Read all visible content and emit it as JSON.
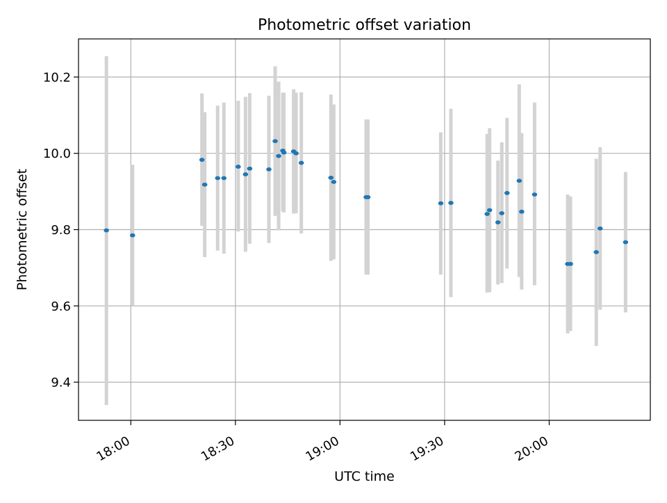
{
  "chart_data": {
    "type": "scatter",
    "title": "Photometric offset variation",
    "xlabel": "UTC time",
    "ylabel": "Photometric offset",
    "x_unit": "UTC time HH:MM",
    "xlim": [
      "17:45",
      "20:29"
    ],
    "ylim": [
      9.3,
      10.3
    ],
    "x_ticks": [
      "18:00",
      "18:30",
      "19:00",
      "19:30",
      "20:00"
    ],
    "y_ticks": [
      9.4,
      9.6,
      9.8,
      10.0,
      10.2
    ],
    "y_tick_labels": [
      "9.4",
      "9.6",
      "9.8",
      "10.0",
      "10.2"
    ],
    "grid": true,
    "legend": "none",
    "point_color": "#1f77b4",
    "errorbar_color": "#d3d3d3",
    "points": [
      {
        "x": "17:53:00",
        "y": 9.798,
        "low": 9.34,
        "high": 10.255
      },
      {
        "x": "18:00:30",
        "y": 9.785,
        "low": 9.6,
        "high": 9.97
      },
      {
        "x": "18:20:24",
        "y": 9.983,
        "low": 9.81,
        "high": 10.157
      },
      {
        "x": "18:21:12",
        "y": 9.918,
        "low": 9.728,
        "high": 10.108
      },
      {
        "x": "18:24:54",
        "y": 9.935,
        "low": 9.745,
        "high": 10.125
      },
      {
        "x": "18:26:42",
        "y": 9.935,
        "low": 9.737,
        "high": 10.133
      },
      {
        "x": "18:30:48",
        "y": 9.965,
        "low": 9.795,
        "high": 10.138
      },
      {
        "x": "18:32:54",
        "y": 9.945,
        "low": 9.742,
        "high": 10.148
      },
      {
        "x": "18:34:06",
        "y": 9.96,
        "low": 9.763,
        "high": 10.158
      },
      {
        "x": "18:39:36",
        "y": 9.958,
        "low": 9.765,
        "high": 10.151
      },
      {
        "x": "18:41:24",
        "y": 10.032,
        "low": 9.836,
        "high": 10.228
      },
      {
        "x": "18:42:24",
        "y": 9.993,
        "low": 9.798,
        "high": 10.188
      },
      {
        "x": "18:43:36",
        "y": 10.007,
        "low": 9.848,
        "high": 10.159
      },
      {
        "x": "18:43:54",
        "y": 10.002,
        "low": 9.845,
        "high": 10.159
      },
      {
        "x": "18:46:42",
        "y": 10.005,
        "low": 9.842,
        "high": 10.168
      },
      {
        "x": "18:47:24",
        "y": 10.0,
        "low": 9.843,
        "high": 10.159
      },
      {
        "x": "18:48:54",
        "y": 9.975,
        "low": 9.79,
        "high": 10.16
      },
      {
        "x": "18:57:24",
        "y": 9.936,
        "low": 9.718,
        "high": 10.154
      },
      {
        "x": "18:58:12",
        "y": 9.925,
        "low": 9.722,
        "high": 10.128
      },
      {
        "x": "19:07:30",
        "y": 9.885,
        "low": 9.682,
        "high": 10.089
      },
      {
        "x": "19:08:00",
        "y": 9.885,
        "low": 9.682,
        "high": 10.089
      },
      {
        "x": "19:28:54",
        "y": 9.869,
        "low": 9.682,
        "high": 10.055
      },
      {
        "x": "19:31:48",
        "y": 9.87,
        "low": 9.623,
        "high": 10.117
      },
      {
        "x": "19:42:12",
        "y": 9.841,
        "low": 9.635,
        "high": 10.051
      },
      {
        "x": "19:42:54",
        "y": 9.851,
        "low": 9.636,
        "high": 10.066
      },
      {
        "x": "19:45:18",
        "y": 9.819,
        "low": 9.656,
        "high": 9.981
      },
      {
        "x": "19:46:24",
        "y": 9.843,
        "low": 9.66,
        "high": 10.029
      },
      {
        "x": "19:47:54",
        "y": 9.896,
        "low": 9.698,
        "high": 10.093
      },
      {
        "x": "19:51:24",
        "y": 9.928,
        "low": 9.676,
        "high": 10.181
      },
      {
        "x": "19:52:06",
        "y": 9.847,
        "low": 9.643,
        "high": 10.053
      },
      {
        "x": "19:55:48",
        "y": 9.892,
        "low": 9.654,
        "high": 10.133
      },
      {
        "x": "20:05:18",
        "y": 9.71,
        "low": 9.528,
        "high": 9.892
      },
      {
        "x": "20:06:06",
        "y": 9.71,
        "low": 9.534,
        "high": 9.887
      },
      {
        "x": "20:13:30",
        "y": 9.741,
        "low": 9.495,
        "high": 9.986
      },
      {
        "x": "20:14:36",
        "y": 9.803,
        "low": 9.59,
        "high": 10.016
      },
      {
        "x": "20:21:54",
        "y": 9.767,
        "low": 9.583,
        "high": 9.951
      }
    ]
  }
}
